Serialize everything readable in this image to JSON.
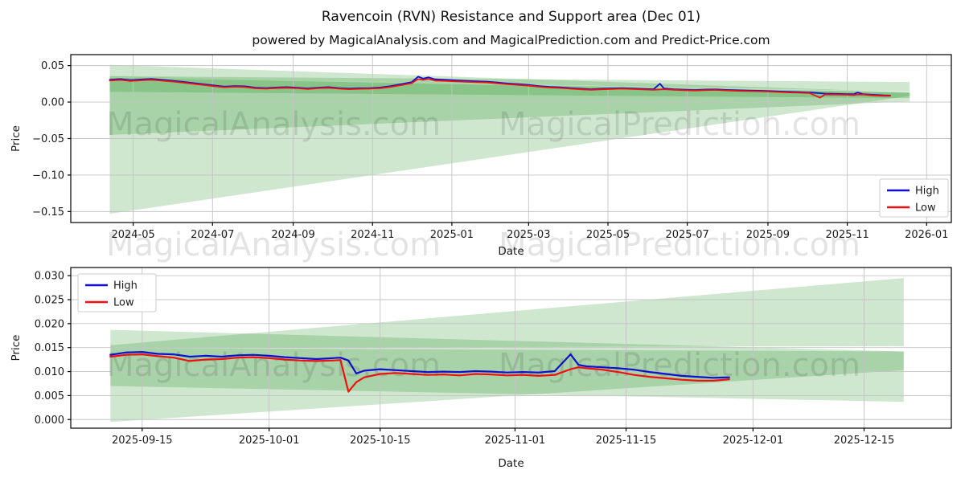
{
  "page": {
    "title": "Ravencoin (RVN) Resistance and Support area (Dec 01)",
    "subtitle": "powered by MagicalAnalysis.com and MagicalPrediction.com and Predict-Price.com"
  },
  "watermark": {
    "left": "MagicalAnalysis.com",
    "right": "MagicalPrediction.com"
  },
  "colors": {
    "high": "#0f0fcd",
    "low": "#ee1111",
    "band": "rgba(0,128,0,0.19)",
    "grid": "#c3c3c3",
    "spine": "#000000",
    "tick_text": "#1a1a1a",
    "watermark_opacity": 0.11,
    "legend_border": "#cccccc"
  },
  "chart_data": [
    {
      "type": "line",
      "name": "price-history",
      "xlabel": "Date",
      "ylabel": "Price",
      "xlim": [
        "2024-03-14",
        "2026-01-20"
      ],
      "ylim": [
        -0.165,
        0.065
      ],
      "xticks": [
        {
          "v": "2024-05-01",
          "label": "2024-05"
        },
        {
          "v": "2024-07-01",
          "label": "2024-07"
        },
        {
          "v": "2024-09-01",
          "label": "2024-09"
        },
        {
          "v": "2024-11-01",
          "label": "2024-11"
        },
        {
          "v": "2025-01-01",
          "label": "2025-01"
        },
        {
          "v": "2025-03-01",
          "label": "2025-03"
        },
        {
          "v": "2025-05-01",
          "label": "2025-05"
        },
        {
          "v": "2025-07-01",
          "label": "2025-07"
        },
        {
          "v": "2025-09-01",
          "label": "2025-09"
        },
        {
          "v": "2025-11-01",
          "label": "2025-11"
        },
        {
          "v": "2026-01-01",
          "label": "2026-01"
        }
      ],
      "yticks": [
        {
          "v": 0.05,
          "label": "0.05"
        },
        {
          "v": 0.0,
          "label": "0.00"
        },
        {
          "v": -0.05,
          "label": "−0.05"
        },
        {
          "v": -0.1,
          "label": "−0.10"
        },
        {
          "v": -0.15,
          "label": "−0.15"
        }
      ],
      "legend": {
        "position": "bottom-right",
        "entries": [
          {
            "label": "High",
            "color_key": "high"
          },
          {
            "label": "Low",
            "color_key": "low"
          }
        ]
      },
      "bands": [
        [
          [
            "2024-04-13",
            0.051
          ],
          [
            "2025-12-19",
            0.0135
          ],
          [
            "2025-12-19",
            0.0085
          ],
          [
            "2024-04-13",
            -0.153
          ]
        ],
        [
          [
            "2024-04-13",
            0.0355
          ],
          [
            "2025-12-19",
            0.0275
          ],
          [
            "2025-12-19",
            0.0145
          ],
          [
            "2024-04-13",
            0.0345
          ]
        ],
        [
          [
            "2024-04-13",
            0.035
          ],
          [
            "2025-12-19",
            0.0135
          ],
          [
            "2025-12-19",
            0.001
          ],
          [
            "2024-04-13",
            -0.045
          ]
        ],
        [
          [
            "2024-04-13",
            0.0335
          ],
          [
            "2025-12-19",
            0.0125
          ],
          [
            "2025-12-19",
            0.0055
          ],
          [
            "2024-04-13",
            0.014
          ]
        ]
      ],
      "points": [
        [
          "2024-04-13",
          0.0305,
          0.0295
        ],
        [
          "2024-04-21",
          0.0315,
          0.0303
        ],
        [
          "2024-04-29",
          0.03,
          0.0289
        ],
        [
          "2024-05-07",
          0.031,
          0.0298
        ],
        [
          "2024-05-15",
          0.0318,
          0.0306
        ],
        [
          "2024-05-23",
          0.0305,
          0.0294
        ],
        [
          "2024-05-31",
          0.0292,
          0.0281
        ],
        [
          "2024-06-08",
          0.0278,
          0.0267
        ],
        [
          "2024-06-16",
          0.0262,
          0.0251
        ],
        [
          "2024-06-24",
          0.0245,
          0.0235
        ],
        [
          "2024-07-02",
          0.0228,
          0.0218
        ],
        [
          "2024-07-10",
          0.0212,
          0.0203
        ],
        [
          "2024-07-18",
          0.022,
          0.021
        ],
        [
          "2024-07-26",
          0.0216,
          0.0206
        ],
        [
          "2024-08-03",
          0.0198,
          0.0188
        ],
        [
          "2024-08-11",
          0.0192,
          0.0183
        ],
        [
          "2024-08-19",
          0.02,
          0.0191
        ],
        [
          "2024-08-27",
          0.0205,
          0.0196
        ],
        [
          "2024-09-04",
          0.0198,
          0.0189
        ],
        [
          "2024-09-12",
          0.0188,
          0.0179
        ],
        [
          "2024-09-20",
          0.0198,
          0.0189
        ],
        [
          "2024-09-28",
          0.0205,
          0.0196
        ],
        [
          "2024-10-06",
          0.0192,
          0.0183
        ],
        [
          "2024-10-14",
          0.0185,
          0.0176
        ],
        [
          "2024-10-22",
          0.019,
          0.0181
        ],
        [
          "2024-10-30",
          0.0192,
          0.0183
        ],
        [
          "2024-11-07",
          0.02,
          0.019
        ],
        [
          "2024-11-15",
          0.022,
          0.0208
        ],
        [
          "2024-11-23",
          0.0245,
          0.0232
        ],
        [
          "2024-12-01",
          0.0272,
          0.0258
        ],
        [
          "2024-12-06",
          0.0348,
          0.0315
        ],
        [
          "2024-12-10",
          0.0322,
          0.0303
        ],
        [
          "2024-12-14",
          0.034,
          0.0318
        ],
        [
          "2024-12-19",
          0.0312,
          0.0295
        ],
        [
          "2024-12-27",
          0.0305,
          0.029
        ],
        [
          "2025-01-04",
          0.0298,
          0.0284
        ],
        [
          "2025-01-12",
          0.029,
          0.0277
        ],
        [
          "2025-01-20",
          0.0285,
          0.0272
        ],
        [
          "2025-01-28",
          0.028,
          0.0268
        ],
        [
          "2025-02-05",
          0.0268,
          0.0256
        ],
        [
          "2025-02-13",
          0.0255,
          0.0244
        ],
        [
          "2025-02-21",
          0.0246,
          0.0235
        ],
        [
          "2025-03-01",
          0.0235,
          0.0224
        ],
        [
          "2025-03-09",
          0.022,
          0.021
        ],
        [
          "2025-03-17",
          0.0208,
          0.0199
        ],
        [
          "2025-03-25",
          0.0202,
          0.0193
        ],
        [
          "2025-04-02",
          0.0192,
          0.0183
        ],
        [
          "2025-04-10",
          0.0183,
          0.0175
        ],
        [
          "2025-04-18",
          0.0176,
          0.0168
        ],
        [
          "2025-04-26",
          0.0183,
          0.0175
        ],
        [
          "2025-05-04",
          0.0188,
          0.0179
        ],
        [
          "2025-05-12",
          0.0192,
          0.0184
        ],
        [
          "2025-05-20",
          0.0186,
          0.0178
        ],
        [
          "2025-05-28",
          0.018,
          0.0172
        ],
        [
          "2025-06-05",
          0.0175,
          0.0167
        ],
        [
          "2025-06-10",
          0.0252,
          0.0172
        ],
        [
          "2025-06-13",
          0.0188,
          0.0176
        ],
        [
          "2025-06-21",
          0.0176,
          0.0168
        ],
        [
          "2025-06-29",
          0.017,
          0.0162
        ],
        [
          "2025-07-07",
          0.0166,
          0.0158
        ],
        [
          "2025-07-15",
          0.0172,
          0.0164
        ],
        [
          "2025-07-23",
          0.0174,
          0.0166
        ],
        [
          "2025-07-31",
          0.0167,
          0.0159
        ],
        [
          "2025-08-08",
          0.0162,
          0.0154
        ],
        [
          "2025-08-16",
          0.0158,
          0.015
        ],
        [
          "2025-08-24",
          0.0156,
          0.0148
        ],
        [
          "2025-09-01",
          0.0152,
          0.0144
        ],
        [
          "2025-09-09",
          0.0146,
          0.0138
        ],
        [
          "2025-09-17",
          0.014,
          0.0132
        ],
        [
          "2025-09-25",
          0.0136,
          0.0128
        ],
        [
          "2025-10-03",
          0.0132,
          0.0124
        ],
        [
          "2025-10-11",
          0.0122,
          0.006
        ],
        [
          "2025-10-15",
          0.0116,
          0.0104
        ],
        [
          "2025-10-23",
          0.0113,
          0.0103
        ],
        [
          "2025-10-31",
          0.011,
          0.01
        ],
        [
          "2025-11-06",
          0.0107,
          0.0097
        ],
        [
          "2025-11-09",
          0.0132,
          0.0104
        ],
        [
          "2025-11-13",
          0.011,
          0.0103
        ],
        [
          "2025-11-21",
          0.01,
          0.0091
        ],
        [
          "2025-11-29",
          0.0092,
          0.0085
        ],
        [
          "2025-12-04",
          0.009,
          0.0086
        ]
      ],
      "series": [
        {
          "name": "High",
          "index": 1,
          "color_key": "high"
        },
        {
          "name": "Low",
          "index": 2,
          "color_key": "low"
        }
      ]
    },
    {
      "type": "line",
      "name": "recent-detail",
      "xlabel": "Date",
      "ylabel": "Price",
      "xlim": [
        "2025-09-06",
        "2025-12-26"
      ],
      "ylim": [
        -0.0018,
        0.0317
      ],
      "xticks": [
        {
          "v": "2025-09-15",
          "label": "2025-09-15"
        },
        {
          "v": "2025-10-01",
          "label": "2025-10-01"
        },
        {
          "v": "2025-10-15",
          "label": "2025-10-15"
        },
        {
          "v": "2025-11-01",
          "label": "2025-11-01"
        },
        {
          "v": "2025-11-15",
          "label": "2025-11-15"
        },
        {
          "v": "2025-12-01",
          "label": "2025-12-01"
        },
        {
          "v": "2025-12-15",
          "label": "2025-12-15"
        }
      ],
      "yticks": [
        {
          "v": 0.03,
          "label": "0.030"
        },
        {
          "v": 0.025,
          "label": "0.025"
        },
        {
          "v": 0.02,
          "label": "0.020"
        },
        {
          "v": 0.015,
          "label": "0.015"
        },
        {
          "v": 0.01,
          "label": "0.010"
        },
        {
          "v": 0.005,
          "label": "0.005"
        },
        {
          "v": 0.0,
          "label": "0.000"
        }
      ],
      "legend": {
        "position": "top-left",
        "entries": [
          {
            "label": "High",
            "color_key": "high"
          },
          {
            "label": "Low",
            "color_key": "low"
          }
        ]
      },
      "bands": [
        [
          [
            "2025-09-11",
            0.0187
          ],
          [
            "2025-12-20",
            0.0142
          ],
          [
            "2025-12-20",
            0.0103
          ],
          [
            "2025-09-11",
            -0.0005
          ]
        ],
        [
          [
            "2025-09-11",
            0.0155
          ],
          [
            "2025-12-20",
            0.0295
          ],
          [
            "2025-12-20",
            0.0153
          ],
          [
            "2025-09-11",
            0.01495
          ]
        ],
        [
          [
            "2025-09-11",
            0.01495
          ],
          [
            "2025-12-20",
            0.0142
          ],
          [
            "2025-12-20",
            0.0037
          ],
          [
            "2025-09-11",
            0.007
          ]
        ]
      ],
      "points": [
        [
          "2025-09-11",
          0.0135,
          0.0131
        ],
        [
          "2025-09-13",
          0.014,
          0.0135
        ],
        [
          "2025-09-15",
          0.0141,
          0.0136
        ],
        [
          "2025-09-17",
          0.0137,
          0.0132
        ],
        [
          "2025-09-19",
          0.0136,
          0.0129
        ],
        [
          "2025-09-21",
          0.0131,
          0.0122
        ],
        [
          "2025-09-23",
          0.0133,
          0.0125
        ],
        [
          "2025-09-25",
          0.0131,
          0.0126
        ],
        [
          "2025-09-27",
          0.0134,
          0.0129
        ],
        [
          "2025-09-29",
          0.0135,
          0.013
        ],
        [
          "2025-10-01",
          0.0133,
          0.0128
        ],
        [
          "2025-10-03",
          0.013,
          0.0125
        ],
        [
          "2025-10-05",
          0.0128,
          0.0123
        ],
        [
          "2025-10-07",
          0.0126,
          0.0122
        ],
        [
          "2025-10-09",
          0.0128,
          0.0123
        ],
        [
          "2025-10-10",
          0.0129,
          0.0124
        ],
        [
          "2025-10-11",
          0.0123,
          0.0058
        ],
        [
          "2025-10-12",
          0.0096,
          0.0078
        ],
        [
          "2025-10-13",
          0.0102,
          0.0088
        ],
        [
          "2025-10-15",
          0.0105,
          0.0095
        ],
        [
          "2025-10-17",
          0.0103,
          0.0097
        ],
        [
          "2025-10-19",
          0.0101,
          0.0095
        ],
        [
          "2025-10-21",
          0.0099,
          0.0093
        ],
        [
          "2025-10-23",
          0.01,
          0.0094
        ],
        [
          "2025-10-25",
          0.0099,
          0.0092
        ],
        [
          "2025-10-27",
          0.0101,
          0.0095
        ],
        [
          "2025-10-29",
          0.01,
          0.0094
        ],
        [
          "2025-10-31",
          0.0098,
          0.0092
        ],
        [
          "2025-11-02",
          0.0099,
          0.0093
        ],
        [
          "2025-11-04",
          0.0098,
          0.0091
        ],
        [
          "2025-11-06",
          0.0101,
          0.0093
        ],
        [
          "2025-11-08",
          0.0136,
          0.0105
        ],
        [
          "2025-11-09",
          0.0114,
          0.0109
        ],
        [
          "2025-11-10",
          0.0111,
          0.0107
        ],
        [
          "2025-11-12",
          0.0109,
          0.0104
        ],
        [
          "2025-11-14",
          0.0107,
          0.0099
        ],
        [
          "2025-11-16",
          0.0104,
          0.0093
        ],
        [
          "2025-11-18",
          0.0099,
          0.0089
        ],
        [
          "2025-11-20",
          0.0095,
          0.0086
        ],
        [
          "2025-11-22",
          0.0091,
          0.0083
        ],
        [
          "2025-11-24",
          0.0089,
          0.0081
        ],
        [
          "2025-11-26",
          0.0087,
          0.0081
        ],
        [
          "2025-11-28",
          0.0088,
          0.0084
        ]
      ],
      "series": [
        {
          "name": "High",
          "index": 1,
          "color_key": "high"
        },
        {
          "name": "Low",
          "index": 2,
          "color_key": "low"
        }
      ]
    }
  ]
}
